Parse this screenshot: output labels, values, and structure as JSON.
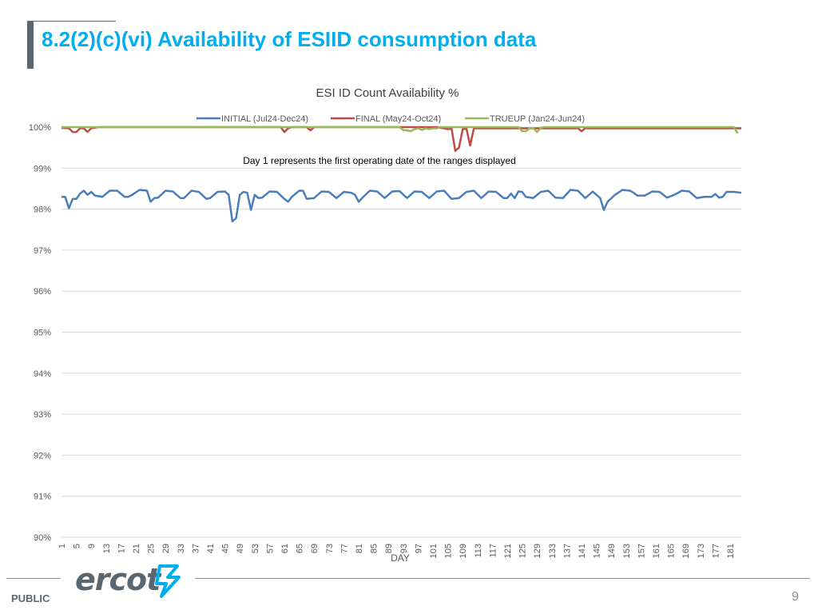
{
  "slide": {
    "title": "8.2(2)(c)(vi) Availability of ESIID consumption data",
    "footer_label": "PUBLIC",
    "page_number": "9",
    "logo_text": "ercot",
    "accent_color": "#00aeef"
  },
  "chart_data": {
    "type": "line",
    "title": "ESI ID Count Availability %",
    "annotation": "Day 1 represents the first operating date of the ranges displayed",
    "xlabel": "DAY",
    "ylabel": "",
    "ylim": [
      90,
      100
    ],
    "yticks": [
      90,
      91,
      92,
      93,
      94,
      95,
      96,
      97,
      98,
      99,
      100
    ],
    "y_tick_suffix": "%",
    "xlim": [
      1,
      184
    ],
    "xticks": [
      1,
      5,
      9,
      13,
      17,
      21,
      25,
      29,
      33,
      37,
      41,
      45,
      49,
      53,
      57,
      61,
      65,
      69,
      73,
      77,
      81,
      85,
      89,
      93,
      97,
      101,
      105,
      109,
      113,
      117,
      121,
      125,
      129,
      133,
      137,
      141,
      145,
      149,
      153,
      157,
      161,
      165,
      169,
      173,
      177,
      181
    ],
    "grid": true,
    "legend_position": "top",
    "series": [
      {
        "name": "INITIAL (Jul24-Dec24)",
        "color": "#4a7ebb",
        "points": [
          [
            1,
            98.3
          ],
          [
            2,
            98.3
          ],
          [
            3,
            98.02
          ],
          [
            4,
            98.25
          ],
          [
            5,
            98.25
          ],
          [
            6,
            98.38
          ],
          [
            7,
            98.45
          ],
          [
            8,
            98.35
          ],
          [
            9,
            98.42
          ],
          [
            10,
            98.33
          ],
          [
            12,
            98.3
          ],
          [
            14,
            98.45
          ],
          [
            16,
            98.45
          ],
          [
            18,
            98.3
          ],
          [
            19,
            98.3
          ],
          [
            20,
            98.35
          ],
          [
            22,
            98.47
          ],
          [
            24,
            98.45
          ],
          [
            25,
            98.18
          ],
          [
            26,
            98.27
          ],
          [
            27,
            98.28
          ],
          [
            29,
            98.45
          ],
          [
            31,
            98.43
          ],
          [
            33,
            98.27
          ],
          [
            34,
            98.27
          ],
          [
            36,
            98.45
          ],
          [
            38,
            98.42
          ],
          [
            40,
            98.25
          ],
          [
            41,
            98.27
          ],
          [
            43,
            98.42
          ],
          [
            45,
            98.43
          ],
          [
            46,
            98.35
          ],
          [
            47,
            97.7
          ],
          [
            48,
            97.78
          ],
          [
            49,
            98.35
          ],
          [
            50,
            98.42
          ],
          [
            51,
            98.4
          ],
          [
            52,
            97.98
          ],
          [
            53,
            98.35
          ],
          [
            54,
            98.27
          ],
          [
            55,
            98.28
          ],
          [
            57,
            98.43
          ],
          [
            59,
            98.42
          ],
          [
            61,
            98.25
          ],
          [
            62,
            98.18
          ],
          [
            63,
            98.3
          ],
          [
            65,
            98.45
          ],
          [
            66,
            98.45
          ],
          [
            67,
            98.25
          ],
          [
            69,
            98.27
          ],
          [
            71,
            98.43
          ],
          [
            73,
            98.42
          ],
          [
            75,
            98.27
          ],
          [
            77,
            98.42
          ],
          [
            79,
            98.4
          ],
          [
            80,
            98.35
          ],
          [
            81,
            98.18
          ],
          [
            82,
            98.28
          ],
          [
            84,
            98.45
          ],
          [
            86,
            98.43
          ],
          [
            88,
            98.27
          ],
          [
            90,
            98.43
          ],
          [
            92,
            98.44
          ],
          [
            94,
            98.27
          ],
          [
            96,
            98.43
          ],
          [
            98,
            98.42
          ],
          [
            100,
            98.27
          ],
          [
            102,
            98.43
          ],
          [
            104,
            98.45
          ],
          [
            106,
            98.25
          ],
          [
            108,
            98.27
          ],
          [
            110,
            98.42
          ],
          [
            112,
            98.45
          ],
          [
            114,
            98.27
          ],
          [
            116,
            98.43
          ],
          [
            118,
            98.42
          ],
          [
            120,
            98.27
          ],
          [
            121,
            98.27
          ],
          [
            122,
            98.38
          ],
          [
            123,
            98.27
          ],
          [
            124,
            98.43
          ],
          [
            125,
            98.42
          ],
          [
            126,
            98.3
          ],
          [
            128,
            98.27
          ],
          [
            130,
            98.42
          ],
          [
            132,
            98.45
          ],
          [
            134,
            98.28
          ],
          [
            136,
            98.27
          ],
          [
            138,
            98.47
          ],
          [
            140,
            98.45
          ],
          [
            142,
            98.27
          ],
          [
            144,
            98.43
          ],
          [
            146,
            98.27
          ],
          [
            147,
            97.98
          ],
          [
            148,
            98.18
          ],
          [
            150,
            98.35
          ],
          [
            152,
            98.47
          ],
          [
            154,
            98.45
          ],
          [
            155,
            98.4
          ],
          [
            156,
            98.33
          ],
          [
            158,
            98.33
          ],
          [
            160,
            98.43
          ],
          [
            162,
            98.42
          ],
          [
            164,
            98.28
          ],
          [
            166,
            98.35
          ],
          [
            168,
            98.45
          ],
          [
            170,
            98.43
          ],
          [
            172,
            98.27
          ],
          [
            174,
            98.3
          ],
          [
            176,
            98.3
          ],
          [
            177,
            98.37
          ],
          [
            178,
            98.28
          ],
          [
            179,
            98.3
          ],
          [
            180,
            98.42
          ],
          [
            182,
            98.42
          ],
          [
            184,
            98.4
          ]
        ]
      },
      {
        "name": "FINAL (May24-Oct24)",
        "color": "#be4b48",
        "points": [
          [
            1,
            99.98
          ],
          [
            3,
            99.97
          ],
          [
            4,
            99.88
          ],
          [
            5,
            99.88
          ],
          [
            6,
            99.97
          ],
          [
            7,
            99.97
          ],
          [
            8,
            99.88
          ],
          [
            9,
            99.97
          ],
          [
            11,
            100
          ],
          [
            60,
            100
          ],
          [
            61,
            99.88
          ],
          [
            62,
            99.97
          ],
          [
            63,
            100
          ],
          [
            67,
            100
          ],
          [
            68,
            99.92
          ],
          [
            69,
            100
          ],
          [
            102,
            100
          ],
          [
            104,
            99.97
          ],
          [
            105,
            99.95
          ],
          [
            106,
            99.97
          ],
          [
            107,
            99.42
          ],
          [
            108,
            99.5
          ],
          [
            109,
            99.95
          ],
          [
            110,
            99.97
          ],
          [
            111,
            99.55
          ],
          [
            112,
            99.97
          ],
          [
            140,
            99.97
          ],
          [
            141,
            99.9
          ],
          [
            142,
            99.97
          ],
          [
            184,
            99.97
          ]
        ]
      },
      {
        "name": "TRUEUP (Jan24-Jun24)",
        "color": "#98b954",
        "points": [
          [
            1,
            100
          ],
          [
            92,
            100
          ],
          [
            93,
            99.93
          ],
          [
            94,
            99.92
          ],
          [
            95,
            99.9
          ],
          [
            96,
            99.95
          ],
          [
            97,
            99.97
          ],
          [
            98,
            99.93
          ],
          [
            99,
            99.97
          ],
          [
            100,
            99.95
          ],
          [
            101,
            99.97
          ],
          [
            102,
            99.97
          ],
          [
            103,
            100
          ],
          [
            124,
            100
          ],
          [
            125,
            99.9
          ],
          [
            126,
            99.9
          ],
          [
            127,
            99.97
          ],
          [
            128,
            99.98
          ],
          [
            129,
            99.88
          ],
          [
            130,
            99.98
          ],
          [
            131,
            100
          ],
          [
            182,
            100
          ],
          [
            183,
            99.85
          ]
        ]
      }
    ]
  }
}
